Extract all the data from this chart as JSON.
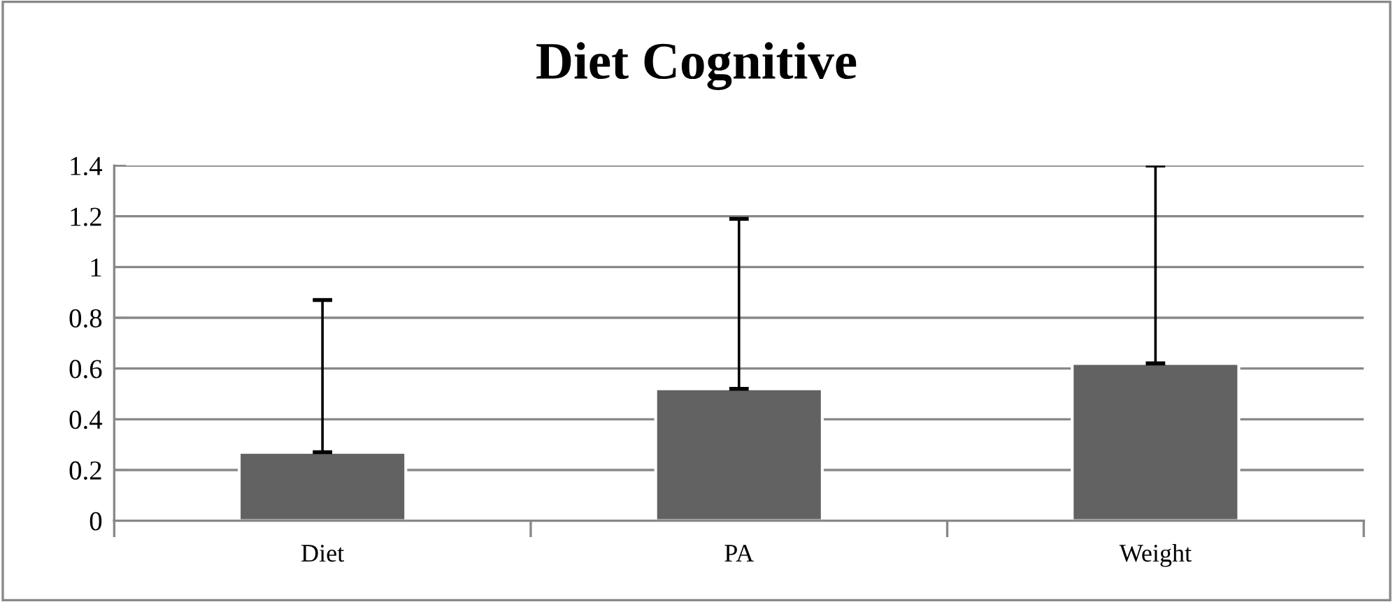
{
  "chart_data": {
    "type": "bar",
    "title": "Diet Cognitive",
    "categories": [
      "Diet",
      "PA",
      "Weight"
    ],
    "values": [
      0.27,
      0.52,
      0.62
    ],
    "errors": [
      [
        0.27,
        0.87
      ],
      [
        0.52,
        1.19
      ],
      [
        0.62,
        1.4
      ]
    ],
    "color": "#626262",
    "ylim": [
      0,
      1.4
    ],
    "yticks": [
      0,
      0.2,
      0.4,
      0.6,
      0.8,
      1,
      1.2,
      1.4
    ],
    "grid": "y"
  }
}
